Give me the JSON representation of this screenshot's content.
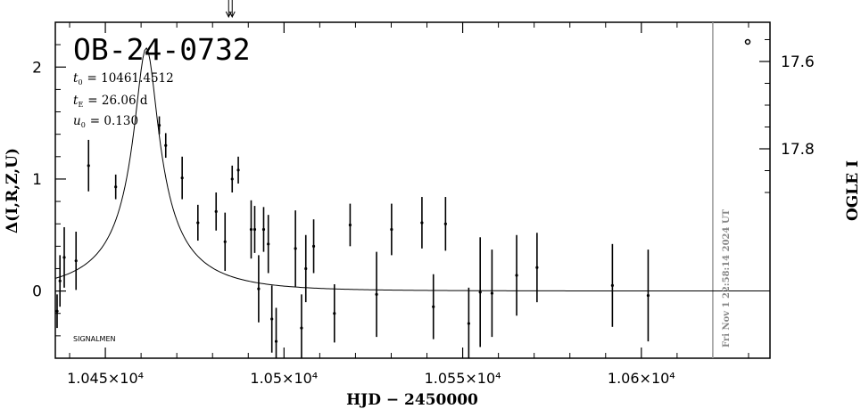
{
  "chart_data": {
    "type": "scatter",
    "title": "OB-24-0732",
    "xlabel": "HJD − 2450000",
    "ylabel": "Δ(I,R,Z,U)",
    "ylabel_right": "OGLE I",
    "params": {
      "t0_label": "t",
      "t0_sub": "0",
      "t0_value": "= 10461.4512",
      "tE_label": "t",
      "tE_sub": "E",
      "tE_value": "= 26.06  d",
      "u0_label": "u",
      "u0_sub": "0",
      "u0_value": "= 0.130"
    },
    "footer_label": "SIGNALMEN",
    "date_stamp": "Fri Nov  1 22:58:14 2024 UT",
    "xlim": [
      10436,
      10636
    ],
    "ylim": [
      -0.6,
      2.4
    ],
    "x_ticks": [
      {
        "value": 10450,
        "label": "1.045×10⁴"
      },
      {
        "value": 10500,
        "label": "1.05×10⁴"
      },
      {
        "value": 10550,
        "label": "1.055×10⁴"
      },
      {
        "value": 10600,
        "label": "1.06×10⁴"
      }
    ],
    "y_ticks": [
      {
        "value": 0,
        "label": "0"
      },
      {
        "value": 1,
        "label": "1"
      },
      {
        "value": 2,
        "label": "2"
      }
    ],
    "right_ticks": [
      {
        "value": 17.6,
        "label": "17.6"
      },
      {
        "value": 17.8,
        "label": "17.8"
      }
    ],
    "right_mapping": {
      "y_at_17_6": 2.05,
      "y_at_17_8": 1.27
    },
    "vline_x": 10620,
    "arrow_x": 10485,
    "model": {
      "t0": 10461.4512,
      "tE": 26.06,
      "u0": 0.13,
      "peak": 2.17
    },
    "points": [
      {
        "x": 10436.5,
        "y": -0.18,
        "err": 0.15
      },
      {
        "x": 10437.3,
        "y": 0.09,
        "err": 0.23
      },
      {
        "x": 10438.5,
        "y": 0.3,
        "err": 0.27
      },
      {
        "x": 10441.8,
        "y": 0.27,
        "err": 0.26
      },
      {
        "x": 10445.3,
        "y": 1.12,
        "err": 0.23
      },
      {
        "x": 10452.9,
        "y": 0.93,
        "err": 0.11
      },
      {
        "x": 10465.1,
        "y": 1.48,
        "err": 0.08
      },
      {
        "x": 10466.9,
        "y": 1.3,
        "err": 0.11
      },
      {
        "x": 10471.5,
        "y": 1.01,
        "err": 0.19
      },
      {
        "x": 10475.9,
        "y": 0.61,
        "err": 0.16
      },
      {
        "x": 10481.0,
        "y": 0.71,
        "err": 0.17
      },
      {
        "x": 10483.5,
        "y": 0.44,
        "err": 0.26
      },
      {
        "x": 10485.5,
        "y": 1.0,
        "err": 0.12
      },
      {
        "x": 10487.2,
        "y": 1.08,
        "err": 0.12
      },
      {
        "x": 10490.8,
        "y": 0.55,
        "err": 0.26
      },
      {
        "x": 10491.8,
        "y": 0.55,
        "err": 0.21
      },
      {
        "x": 10492.9,
        "y": 0.02,
        "err": 0.3
      },
      {
        "x": 10494.3,
        "y": 0.55,
        "err": 0.2
      },
      {
        "x": 10495.6,
        "y": 0.42,
        "err": 0.26
      },
      {
        "x": 10496.6,
        "y": -0.25,
        "err": 0.3
      },
      {
        "x": 10497.8,
        "y": -0.45,
        "err": 0.3
      },
      {
        "x": 10503.2,
        "y": 0.38,
        "err": 0.34
      },
      {
        "x": 10504.9,
        "y": -0.33,
        "err": 0.3
      },
      {
        "x": 10506.1,
        "y": 0.2,
        "err": 0.3
      },
      {
        "x": 10508.3,
        "y": 0.4,
        "err": 0.24
      },
      {
        "x": 10514.1,
        "y": -0.2,
        "err": 0.26
      },
      {
        "x": 10518.5,
        "y": 0.59,
        "err": 0.19
      },
      {
        "x": 10525.9,
        "y": -0.03,
        "err": 0.38
      },
      {
        "x": 10530.1,
        "y": 0.55,
        "err": 0.23
      },
      {
        "x": 10538.6,
        "y": 0.61,
        "err": 0.23
      },
      {
        "x": 10541.8,
        "y": -0.14,
        "err": 0.29
      },
      {
        "x": 10545.2,
        "y": 0.6,
        "err": 0.24
      },
      {
        "x": 10551.7,
        "y": -0.29,
        "err": 0.32
      },
      {
        "x": 10554.9,
        "y": -0.01,
        "err": 0.49
      },
      {
        "x": 10558.2,
        "y": -0.02,
        "err": 0.39
      },
      {
        "x": 10565.1,
        "y": 0.14,
        "err": 0.36
      },
      {
        "x": 10570.8,
        "y": 0.21,
        "err": 0.31
      },
      {
        "x": 10591.9,
        "y": 0.05,
        "err": 0.37
      },
      {
        "x": 10601.9,
        "y": -0.04,
        "err": 0.41
      }
    ]
  }
}
